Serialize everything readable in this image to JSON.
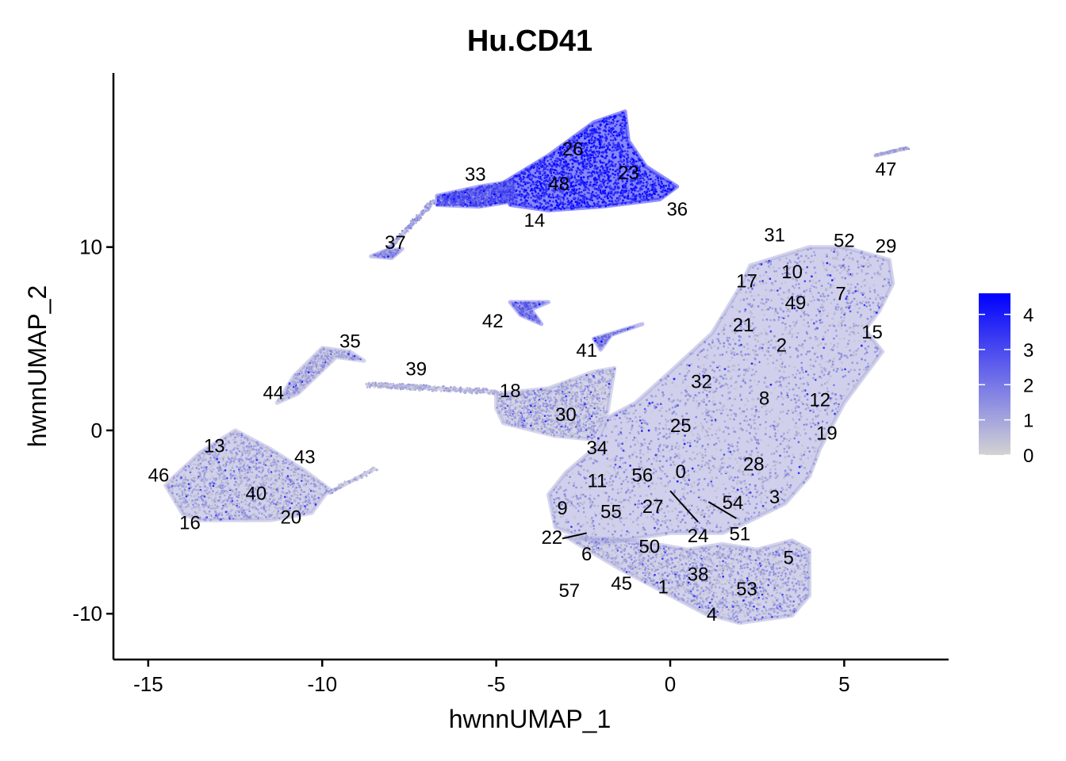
{
  "chart_data": {
    "type": "scatter",
    "title": "Hu.CD41",
    "xlabel": "hwnnUMAP_1",
    "ylabel": "hwnnUMAP_2",
    "xlim": [
      -16,
      8
    ],
    "ylim": [
      -12.5,
      19.5
    ],
    "x_ticks": [
      -15,
      -10,
      -5,
      0,
      5
    ],
    "y_ticks": [
      -10,
      0,
      10
    ],
    "x_tick_labels": [
      "-15",
      "-10",
      "-5",
      "0",
      "5"
    ],
    "y_tick_labels": [
      "-10",
      "0",
      "10"
    ],
    "grid": false,
    "color_scale": {
      "low": "#d3d3d3",
      "high": "#0000ff",
      "min": 0,
      "max": 4.6,
      "ticks": [
        0,
        1,
        2,
        3,
        4
      ],
      "tick_labels": [
        "0",
        "1",
        "2",
        "3",
        "4"
      ],
      "legend_position": "right"
    },
    "cluster_labels": [
      {
        "label": "0",
        "x": 0.3,
        "y": -2.2
      },
      {
        "label": "1",
        "x": -0.2,
        "y": -8.5
      },
      {
        "label": "2",
        "x": 3.2,
        "y": 4.7
      },
      {
        "label": "3",
        "x": 3.0,
        "y": -3.6
      },
      {
        "label": "4",
        "x": 1.2,
        "y": -10.0
      },
      {
        "label": "5",
        "x": 3.4,
        "y": -6.9
      },
      {
        "label": "6",
        "x": -2.4,
        "y": -6.7
      },
      {
        "label": "7",
        "x": 4.9,
        "y": 7.5
      },
      {
        "label": "8",
        "x": 2.7,
        "y": 1.8
      },
      {
        "label": "9",
        "x": -3.1,
        "y": -4.2
      },
      {
        "label": "10",
        "x": 3.5,
        "y": 8.7
      },
      {
        "label": "11",
        "x": -2.1,
        "y": -2.7
      },
      {
        "label": "12",
        "x": 4.3,
        "y": 1.7
      },
      {
        "label": "13",
        "x": -13.1,
        "y": -0.8
      },
      {
        "label": "14",
        "x": -3.9,
        "y": 11.5
      },
      {
        "label": "15",
        "x": 5.8,
        "y": 5.4
      },
      {
        "label": "16",
        "x": -13.8,
        "y": -5.0
      },
      {
        "label": "17",
        "x": 2.2,
        "y": 8.2
      },
      {
        "label": "18",
        "x": -4.6,
        "y": 2.2
      },
      {
        "label": "19",
        "x": 4.5,
        "y": -0.1
      },
      {
        "label": "20",
        "x": -10.9,
        "y": -4.7
      },
      {
        "label": "21",
        "x": 2.1,
        "y": 5.8
      },
      {
        "label": "22",
        "x": -3.4,
        "y": -5.8
      },
      {
        "label": "23",
        "x": -1.2,
        "y": 14.1
      },
      {
        "label": "24",
        "x": 0.8,
        "y": -5.7
      },
      {
        "label": "25",
        "x": 0.3,
        "y": 0.3
      },
      {
        "label": "26",
        "x": -2.8,
        "y": 15.4
      },
      {
        "label": "27",
        "x": -0.5,
        "y": -4.1
      },
      {
        "label": "28",
        "x": 2.4,
        "y": -1.8
      },
      {
        "label": "29",
        "x": 6.2,
        "y": 10.1
      },
      {
        "label": "30",
        "x": -3.0,
        "y": 0.9
      },
      {
        "label": "31",
        "x": 3.0,
        "y": 10.7
      },
      {
        "label": "32",
        "x": 0.9,
        "y": 2.7
      },
      {
        "label": "33",
        "x": -5.6,
        "y": 14.0
      },
      {
        "label": "34",
        "x": -2.1,
        "y": -0.9
      },
      {
        "label": "35",
        "x": -9.2,
        "y": 4.9
      },
      {
        "label": "36",
        "x": 0.2,
        "y": 12.1
      },
      {
        "label": "37",
        "x": -7.9,
        "y": 10.3
      },
      {
        "label": "38",
        "x": 0.8,
        "y": -7.8
      },
      {
        "label": "39",
        "x": -7.3,
        "y": 3.4
      },
      {
        "label": "40",
        "x": -11.9,
        "y": -3.4
      },
      {
        "label": "41",
        "x": -2.4,
        "y": 4.4
      },
      {
        "label": "42",
        "x": -5.1,
        "y": 6.0
      },
      {
        "label": "43",
        "x": -10.5,
        "y": -1.4
      },
      {
        "label": "44",
        "x": -11.4,
        "y": 2.1
      },
      {
        "label": "45",
        "x": -1.4,
        "y": -8.3
      },
      {
        "label": "46",
        "x": -14.7,
        "y": -2.4
      },
      {
        "label": "47",
        "x": 6.2,
        "y": 14.3
      },
      {
        "label": "48",
        "x": -3.2,
        "y": 13.5
      },
      {
        "label": "49",
        "x": 3.6,
        "y": 7.0
      },
      {
        "label": "50",
        "x": -0.6,
        "y": -6.3
      },
      {
        "label": "51",
        "x": 2.0,
        "y": -5.6
      },
      {
        "label": "52",
        "x": 5.0,
        "y": 10.4
      },
      {
        "label": "53",
        "x": 2.2,
        "y": -8.6
      },
      {
        "label": "54",
        "x": 1.8,
        "y": -3.9
      },
      {
        "label": "55",
        "x": -1.7,
        "y": -4.4
      },
      {
        "label": "56",
        "x": -0.8,
        "y": -2.4
      },
      {
        "label": "57",
        "x": -2.9,
        "y": -8.7
      }
    ],
    "leader_lines": [
      {
        "x1": 0.0,
        "y1": -3.3,
        "x2": 0.8,
        "y2": -5.0
      },
      {
        "x1": 1.1,
        "y1": -3.9,
        "x2": 1.9,
        "y2": -4.8
      },
      {
        "x1": -2.4,
        "y1": -5.6,
        "x2": -3.1,
        "y2": -5.9
      }
    ],
    "cell_regions": [
      {
        "shape": "poly",
        "level": 0.9,
        "n": 6500,
        "pts": [
          [
            2.3,
            9
          ],
          [
            4.0,
            10.0
          ],
          [
            5.0,
            10.0
          ],
          [
            6.3,
            9.3
          ],
          [
            6.4,
            8.0
          ],
          [
            6.0,
            6.5
          ],
          [
            5.6,
            5.5
          ],
          [
            6.1,
            4.3
          ],
          [
            5.0,
            1.5
          ],
          [
            4.3,
            -1.0
          ],
          [
            4.0,
            -2.5
          ],
          [
            3.3,
            -4.0
          ],
          [
            2.0,
            -5.2
          ],
          [
            1.5,
            -5.6
          ],
          [
            0.0,
            -5.6
          ],
          [
            -2.0,
            -6.2
          ],
          [
            -3.3,
            -5.3
          ],
          [
            -3.5,
            -3.5
          ],
          [
            -3.0,
            -2.3
          ],
          [
            -2.2,
            -1.0
          ],
          [
            -1.8,
            0.7
          ],
          [
            -1.0,
            1.5
          ],
          [
            0.0,
            3.2
          ],
          [
            1.2,
            5.3
          ],
          [
            2.0,
            7.8
          ]
        ]
      },
      {
        "shape": "poly",
        "level": 0.85,
        "n": 2500,
        "pts": [
          [
            -3.0,
            -5.8
          ],
          [
            -1.5,
            -7.5
          ],
          [
            0.0,
            -9.0
          ],
          [
            1.0,
            -10.0
          ],
          [
            2.0,
            -10.5
          ],
          [
            3.5,
            -10.1
          ],
          [
            4.0,
            -9.0
          ],
          [
            4.0,
            -6.5
          ],
          [
            3.5,
            -6.0
          ],
          [
            2.5,
            -6.5
          ],
          [
            1.5,
            -6.2
          ],
          [
            0.5,
            -6.5
          ],
          [
            -1.0,
            -6.0
          ]
        ]
      },
      {
        "shape": "poly",
        "level": 0.8,
        "n": 1300,
        "pts": [
          [
            -5.0,
            2.0
          ],
          [
            -3.5,
            2.3
          ],
          [
            -2.2,
            3.2
          ],
          [
            -1.6,
            3.4
          ],
          [
            -1.8,
            1.0
          ],
          [
            -2.2,
            -0.5
          ],
          [
            -3.3,
            -0.3
          ],
          [
            -4.8,
            0.4
          ],
          [
            -5.0,
            1.2
          ]
        ]
      },
      {
        "shape": "poly",
        "level": 0.85,
        "n": 1700,
        "pts": [
          [
            -14.5,
            -3.0
          ],
          [
            -14.0,
            -4.6
          ],
          [
            -13.5,
            -4.9
          ],
          [
            -11.5,
            -4.9
          ],
          [
            -10.3,
            -4.5
          ],
          [
            -9.8,
            -3.2
          ],
          [
            -10.5,
            -2.2
          ],
          [
            -11.5,
            -1.0
          ],
          [
            -12.5,
            0.0
          ],
          [
            -13.5,
            -1.2
          ],
          [
            -14.3,
            -2.6
          ]
        ]
      },
      {
        "shape": "poly",
        "level": 3.8,
        "n": 2800,
        "pts": [
          [
            -4.8,
            13.5
          ],
          [
            -3.5,
            15.0
          ],
          [
            -2.2,
            16.8
          ],
          [
            -1.3,
            17.4
          ],
          [
            -1.2,
            15.8
          ],
          [
            -0.7,
            14.4
          ],
          [
            0.2,
            13.3
          ],
          [
            -0.3,
            12.6
          ],
          [
            -2.0,
            12.2
          ],
          [
            -3.5,
            12.0
          ],
          [
            -4.6,
            12.3
          ]
        ]
      },
      {
        "shape": "poly",
        "level": 2.8,
        "n": 900,
        "pts": [
          [
            -6.7,
            12.8
          ],
          [
            -5.5,
            13.3
          ],
          [
            -4.5,
            13.6
          ],
          [
            -4.5,
            12.5
          ],
          [
            -5.5,
            12.2
          ],
          [
            -6.7,
            12.3
          ]
        ]
      },
      {
        "shape": "poly",
        "level": 1.6,
        "n": 120,
        "pts": [
          [
            -8.6,
            9.5
          ],
          [
            -8.0,
            9.4
          ],
          [
            -7.7,
            9.9
          ],
          [
            -8.2,
            9.8
          ]
        ]
      },
      {
        "shape": "poly",
        "level": 2.2,
        "n": 200,
        "pts": [
          [
            -4.6,
            7.0
          ],
          [
            -3.5,
            7.0
          ],
          [
            -4.0,
            6.6
          ],
          [
            -3.7,
            5.8
          ],
          [
            -4.3,
            6.3
          ]
        ]
      },
      {
        "shape": "poly",
        "level": 1.8,
        "n": 200,
        "pts": [
          [
            -2.2,
            5.0
          ],
          [
            -0.8,
            5.8
          ],
          [
            -1.7,
            5.2
          ],
          [
            -2.0,
            4.4
          ]
        ]
      },
      {
        "shape": "poly",
        "level": 0.9,
        "n": 450,
        "pts": [
          [
            -10.0,
            4.5
          ],
          [
            -9.2,
            4.3
          ],
          [
            -8.8,
            3.8
          ],
          [
            -9.6,
            4.0
          ],
          [
            -10.7,
            2.0
          ],
          [
            -11.3,
            1.5
          ],
          [
            -10.8,
            3.0
          ]
        ]
      },
      {
        "shape": "line",
        "level": 0.8,
        "n": 350,
        "x1": -8.7,
        "y1": 2.5,
        "x2": -5.0,
        "y2": 2.1,
        "spread": 0.15
      },
      {
        "shape": "line",
        "level": 1.0,
        "n": 80,
        "x1": 5.9,
        "y1": 15.0,
        "x2": 6.8,
        "y2": 15.4,
        "spread": 0.06
      },
      {
        "shape": "line",
        "level": 0.8,
        "n": 60,
        "x1": -9.8,
        "y1": -3.4,
        "x2": -8.5,
        "y2": -2.1,
        "spread": 0.1
      },
      {
        "shape": "line",
        "level": 1.2,
        "n": 150,
        "x1": -8.2,
        "y1": 9.7,
        "x2": -6.8,
        "y2": 12.5,
        "spread": 0.08
      }
    ]
  }
}
